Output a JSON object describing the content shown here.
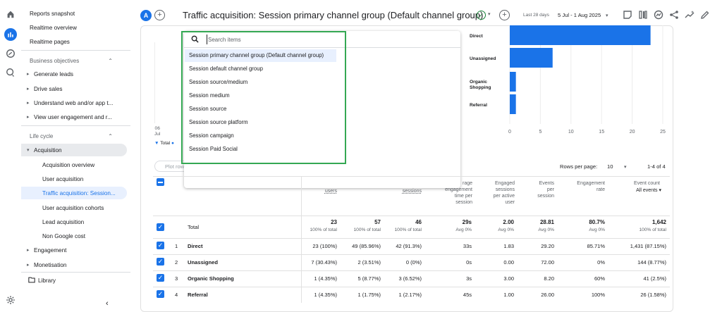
{
  "sidebar": {
    "items": [
      {
        "label": "Reports snapshot"
      },
      {
        "label": "Realtime overview"
      },
      {
        "label": "Realtime pages"
      }
    ],
    "business_objectives": "Business objectives",
    "bo_items": [
      {
        "label": "Generate leads"
      },
      {
        "label": "Drive sales"
      },
      {
        "label": "Understand web and/or app t..."
      },
      {
        "label": "View user engagement and r..."
      }
    ],
    "life_cycle": "Life cycle",
    "acquisition": "Acquisition",
    "acq_items": [
      {
        "label": "Acquisition overview"
      },
      {
        "label": "User acquisition"
      },
      {
        "label": "Traffic acquisition: Session..."
      },
      {
        "label": "User acquisition cohorts"
      },
      {
        "label": "Lead acquisition"
      },
      {
        "label": "Non Google cost"
      }
    ],
    "engagement": "Engagement",
    "monetisation": "Monetisation",
    "library": "Library"
  },
  "header": {
    "avatar_letter": "A",
    "title": "Traffic acquisition: Session primary channel group (Default channel group)",
    "date_label": "Last 28 days",
    "date_range": "5 Jul - 1 Aug 2025"
  },
  "dropdown": {
    "search_placeholder": "Search items",
    "items": [
      "Session primary channel group (Default channel group)",
      "Session default channel group",
      "Session source/medium",
      "Session medium",
      "Session source",
      "Session source platform",
      "Session campaign",
      "Session Paid Social"
    ]
  },
  "chart_data": {
    "type": "bar",
    "orientation": "horizontal",
    "categories": [
      "Direct",
      "Unassigned",
      "Organic Shopping",
      "Referral"
    ],
    "values": [
      23,
      7,
      1,
      1
    ],
    "xlim": [
      0,
      25
    ],
    "xticks": [
      "0",
      "5",
      "10",
      "15",
      "20",
      "25"
    ],
    "color": "#1a73e8"
  },
  "line_chart": {
    "date_tick_day": "06",
    "date_tick_month": "Jul",
    "legend_total": "Total"
  },
  "table": {
    "plot_rows_label": "Plot rows",
    "rows_per_page_label": "Rows per page:",
    "rows_per_page": "10",
    "page_count": "1-4 of 4",
    "headers": {
      "users": "users",
      "sessions": "sessions",
      "avg_eng": [
        "rage",
        "engagement",
        "time per",
        "session"
      ],
      "engaged": [
        "Engaged",
        "sessions",
        "per active",
        "user"
      ],
      "events": [
        "Events",
        "per",
        "session"
      ],
      "eng_rate": [
        "Engagement",
        "rate"
      ],
      "event_count": "Event count",
      "all_events": "All events"
    },
    "total": {
      "label": "Total",
      "c1": "23",
      "c1s": "100% of total",
      "c2": "57",
      "c2s": "100% of total",
      "c3": "46",
      "c3s": "100% of total",
      "c4": "29s",
      "c4s": "Avg 0%",
      "c5": "2.00",
      "c5s": "Avg 0%",
      "c6": "28.81",
      "c6s": "Avg 0%",
      "c7": "80.7%",
      "c7s": "Avg 0%",
      "c8": "1,642",
      "c8s": "100% of total"
    },
    "rows": [
      {
        "idx": "1",
        "name": "Direct",
        "c1": "23 (100%)",
        "c2": "49 (85.96%)",
        "c3": "42 (91.3%)",
        "c4": "33s",
        "c5": "1.83",
        "c6": "29.20",
        "c7": "85.71%",
        "c8": "1,431 (87.15%)"
      },
      {
        "idx": "2",
        "name": "Unassigned",
        "c1": "7 (30.43%)",
        "c2": "2 (3.51%)",
        "c3": "0 (0%)",
        "c4": "0s",
        "c5": "0.00",
        "c6": "72.00",
        "c7": "0%",
        "c8": "144 (8.77%)"
      },
      {
        "idx": "3",
        "name": "Organic Shopping",
        "c1": "1 (4.35%)",
        "c2": "5 (8.77%)",
        "c3": "3 (6.52%)",
        "c4": "3s",
        "c5": "3.00",
        "c6": "8.20",
        "c7": "60%",
        "c8": "41 (2.5%)"
      },
      {
        "idx": "4",
        "name": "Referral",
        "c1": "1 (4.35%)",
        "c2": "1 (1.75%)",
        "c3": "1 (2.17%)",
        "c4": "45s",
        "c5": "1.00",
        "c6": "26.00",
        "c7": "100%",
        "c8": "26 (1.58%)"
      }
    ]
  }
}
